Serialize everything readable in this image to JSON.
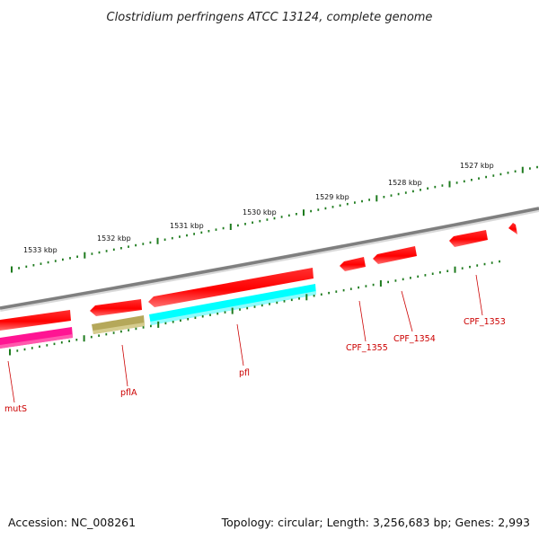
{
  "title": "Clostridium perfringens ATCC 13124, complete genome",
  "footer": {
    "accession": "Accession: NC_008261",
    "summary": "Topology: circular; Length: 3,256,683 bp; Genes: 2,993"
  },
  "kbp_labels": [
    "1533 kbp",
    "1532 kbp",
    "1531 kbp",
    "1530 kbp",
    "1529 kbp",
    "1528 kbp",
    "1527 kbp"
  ],
  "genes": [
    {
      "name": "mutS",
      "color": "#ff1493"
    },
    {
      "name": "pflA",
      "color": "#b5a85a"
    },
    {
      "name": "pfl",
      "color": "#00ffff"
    },
    {
      "name": "CPF_1355",
      "color": "#ff0000"
    },
    {
      "name": "CPF_1354",
      "color": "#ff0000"
    },
    {
      "name": "CPF_1353",
      "color": "#ff0000"
    }
  ],
  "colors": {
    "backbone": "#7f7f7f",
    "ticks": "#1e7b1e",
    "forward_gene": "#ff0000",
    "label": "#cc0000"
  }
}
